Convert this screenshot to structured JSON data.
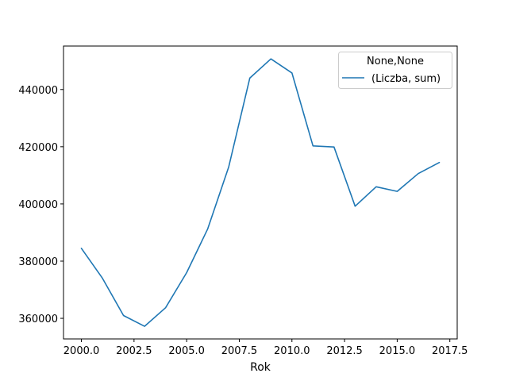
{
  "chart_data": {
    "type": "line",
    "xlabel": "Rok",
    "ylabel": "",
    "xlim": [
      1999.15,
      2017.85
    ],
    "ylim": [
      352800,
      455200
    ],
    "xticks": [
      2000,
      2002.5,
      2005,
      2007.5,
      2010,
      2012.5,
      2015,
      2017.5
    ],
    "xtick_labels": [
      "2000.0",
      "2002.5",
      "2005.0",
      "2007.5",
      "2010.0",
      "2012.5",
      "2015.0",
      "2017.5"
    ],
    "yticks": [
      360000,
      380000,
      400000,
      420000,
      440000
    ],
    "ytick_labels": [
      "360000",
      "380000",
      "400000",
      "420000",
      "440000"
    ],
    "grid": false,
    "legend": {
      "title": "None,None",
      "placement": "top-right"
    },
    "series": [
      {
        "name": "(Liczba, sum)",
        "color": "#1f77b4",
        "x": [
          2000,
          2001,
          2002,
          2003,
          2004,
          2005,
          2006,
          2007,
          2008,
          2009,
          2010,
          2011,
          2012,
          2013,
          2014,
          2015,
          2016,
          2017
        ],
        "y": [
          384500,
          374000,
          361000,
          357200,
          363700,
          376000,
          391300,
          413000,
          444000,
          450700,
          445800,
          420300,
          419900,
          399200,
          406000,
          404400,
          410600,
          414500
        ]
      }
    ]
  }
}
